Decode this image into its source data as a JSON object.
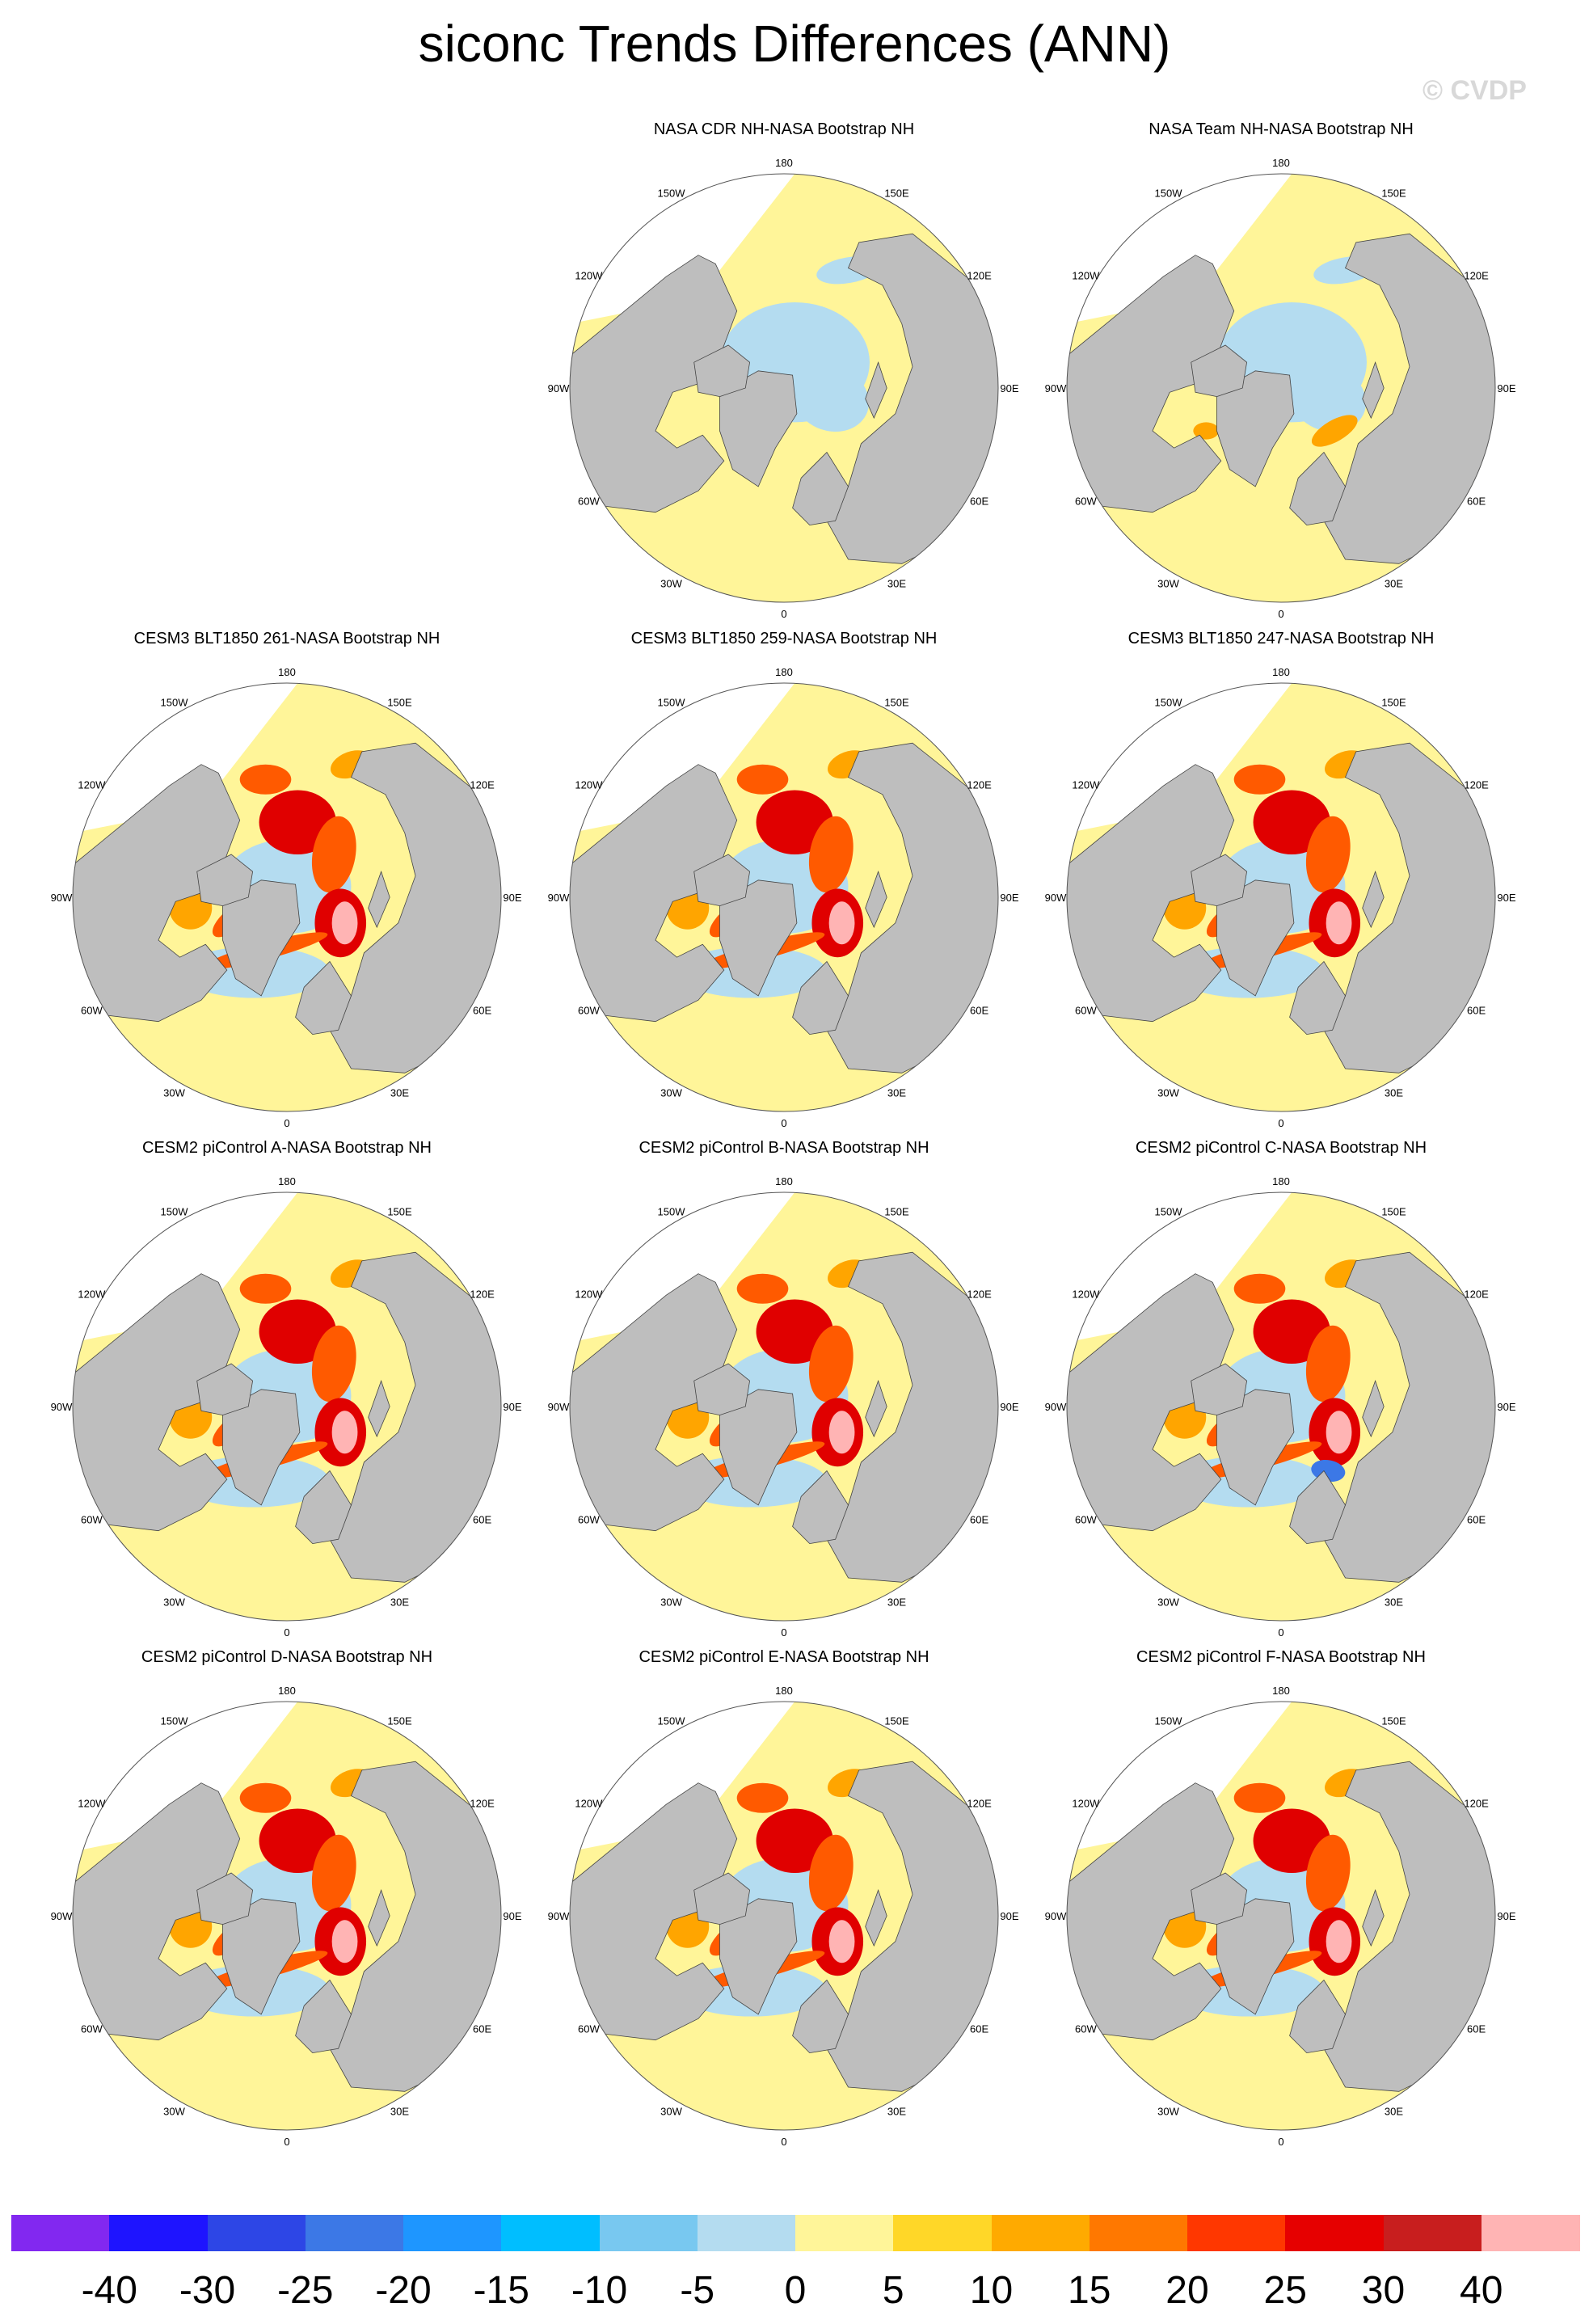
{
  "title": "siconc Trends Differences (ANN)",
  "watermark": "© CVDP",
  "lon_labels": [
    "180",
    "150E",
    "120E",
    "90E",
    "60E",
    "30E",
    "0",
    "30W",
    "60W",
    "90W",
    "120W",
    "150W"
  ],
  "palette": {
    "land": "#bebebe",
    "pos_weak": "#fff599",
    "neg_weak": "#b4dcf0",
    "orange": "#ffa500",
    "red_orange": "#ff5a00",
    "red": "#e00000",
    "pink": "#ffb4b4",
    "blue": "#3c78e6"
  },
  "colorbar": {
    "colors": [
      "#8228f0",
      "#1e14ff",
      "#2d46e6",
      "#3c78e6",
      "#1e96ff",
      "#00beff",
      "#78c8f0",
      "#b4dcf0",
      "#fff599",
      "#ffd728",
      "#ffaa00",
      "#ff7800",
      "#ff3700",
      "#e60000",
      "#c81e1e",
      "#ffb4b4"
    ],
    "labels": [
      "-40",
      "-30",
      "-25",
      "-20",
      "-15",
      "-10",
      "-5",
      "0",
      "5",
      "10",
      "15",
      "20",
      "25",
      "30",
      "40"
    ]
  },
  "panels": [
    {
      "title": "NASA CDR NH-NASA Bootstrap NH",
      "pattern": "obs_a"
    },
    {
      "title": "NASA Team NH-NASA Bootstrap NH",
      "pattern": "obs_b"
    },
    {
      "title": "CESM3 BLT1850 261-NASA Bootstrap NH",
      "pattern": "model"
    },
    {
      "title": "CESM3 BLT1850 259-NASA Bootstrap NH",
      "pattern": "model"
    },
    {
      "title": "CESM3 BLT1850 247-NASA Bootstrap NH",
      "pattern": "model"
    },
    {
      "title": "CESM2 piControl A-NASA Bootstrap NH",
      "pattern": "model"
    },
    {
      "title": "CESM2 piControl B-NASA Bootstrap NH",
      "pattern": "model"
    },
    {
      "title": "CESM2 piControl C-NASA Bootstrap NH",
      "pattern": "model_blue"
    },
    {
      "title": "CESM2 piControl D-NASA Bootstrap NH",
      "pattern": "model"
    },
    {
      "title": "CESM2 piControl E-NASA Bootstrap NH",
      "pattern": "model"
    },
    {
      "title": "CESM2 piControl F-NASA Bootstrap NH",
      "pattern": "model"
    }
  ]
}
